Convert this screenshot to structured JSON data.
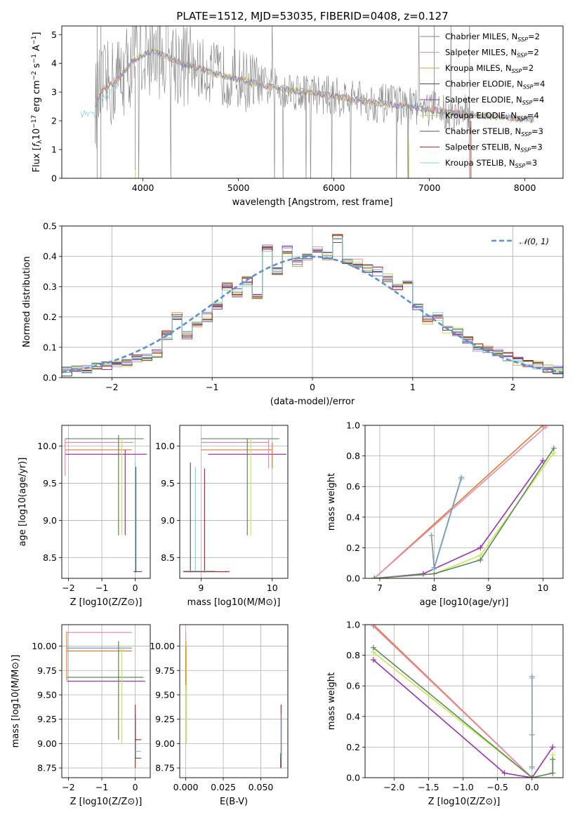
{
  "title": "PLATE=1512, MJD=53035, FIBERID=0408, z=0.127",
  "colors": {
    "chabrier_miles": "#6f7fc7",
    "salpeter_miles": "#e28bb7",
    "kroupa_miles": "#c9a04a",
    "chabrier_elodie": "#4a4a4a",
    "salpeter_elodie": "#8e3aa8",
    "kroupa_elodie": "#c4e84a",
    "chabrier_stelib": "#5a5a5a",
    "salpeter_stelib": "#b32b2b",
    "kroupa_stelib": "#7fd6e0",
    "data_gray": "#808080",
    "orange": "#e07a2a",
    "green": "#5a8a5a",
    "purple": "#9b30b0",
    "yellowgreen": "#c8ea50",
    "pink": "#e88ab8",
    "cyan": "#80d0dc",
    "gauss": "#5b8fd6"
  },
  "chart_data": [
    {
      "id": "spectrum",
      "type": "line",
      "xlabel": "wavelength [Angstrom, rest frame]",
      "ylabel_parts": [
        "Flux [",
        "f",
        "λ",
        "10",
        "−17",
        " erg cm",
        "−2",
        " s",
        "−1",
        " A",
        "−1",
        "]"
      ],
      "xlim": [
        3150,
        8400
      ],
      "ylim": [
        0,
        5.3
      ],
      "xticks": [
        4000,
        5000,
        6000,
        7000,
        8000
      ],
      "yticks": [
        0,
        1,
        2,
        3,
        4,
        5
      ],
      "legend_position": "top-right",
      "legend": [
        {
          "name_prefix": "Chabrier MILES, N",
          "name_sub": "SSP",
          "name_suffix": "=2",
          "color": "#6f7fc7"
        },
        {
          "name_prefix": "Salpeter MILES, N",
          "name_sub": "SSP",
          "name_suffix": "=2",
          "color": "#e28bb7"
        },
        {
          "name_prefix": "Kroupa MILES, N",
          "name_sub": "SSP",
          "name_suffix": "=2",
          "color": "#c9a04a"
        },
        {
          "name_prefix": "Chabrier ELODIE, N",
          "name_sub": "SSP",
          "name_suffix": "=4",
          "color": "#4a4a4a"
        },
        {
          "name_prefix": "Salpeter ELODIE, N",
          "name_sub": "SSP",
          "name_suffix": "=4",
          "color": "#8e3aa8"
        },
        {
          "name_prefix": "Kroupa ELODIE, N",
          "name_sub": "SSP",
          "name_suffix": "=4",
          "color": "#c4e84a"
        },
        {
          "name_prefix": "Chabrier STELIB, N",
          "name_sub": "SSP",
          "name_suffix": "=3",
          "color": "#5a5a5a"
        },
        {
          "name_prefix": "Salpeter STELIB, N",
          "name_sub": "SSP",
          "name_suffix": "=3",
          "color": "#b32b2b"
        },
        {
          "name_prefix": "Kroupa STELIB, N",
          "name_sub": "SSP",
          "name_suffix": "=3",
          "color": "#7fd6e0"
        }
      ],
      "model_envelope": {
        "x": [
          3350,
          3500,
          3550,
          3700,
          3900,
          4000,
          4100,
          4300,
          4500,
          4800,
          5000,
          5300,
          5600,
          6000,
          6500,
          7000,
          7300,
          7500,
          8000,
          8100
        ],
        "y": [
          2.55,
          2.5,
          3.0,
          3.35,
          4.1,
          4.3,
          4.45,
          4.15,
          3.9,
          3.6,
          3.45,
          3.2,
          3.05,
          2.85,
          2.6,
          2.4,
          2.25,
          2.2,
          2.05,
          2.05
        ]
      }
    },
    {
      "id": "residuals",
      "type": "line",
      "xlabel": "(data-model)/error",
      "ylabel": "Normed distribution",
      "xlim": [
        -2.5,
        2.5
      ],
      "ylim": [
        0,
        0.5
      ],
      "xticks": [
        -2,
        -1,
        0,
        1,
        2
      ],
      "xticklabels": [
        "−2",
        "−1",
        "0",
        "1",
        "2"
      ],
      "yticks": [
        0.0,
        0.1,
        0.2,
        0.3,
        0.4,
        0.5
      ],
      "yticklabels": [
        "0.0",
        "0.1",
        "0.2",
        "0.3",
        "0.4",
        "0.5"
      ],
      "legend": [
        {
          "name": "𝒩(0, 1)",
          "color": "#5b8fd6",
          "style": "dashed"
        }
      ],
      "legend_position": "top-right",
      "histogram_bins": {
        "x_left": [
          -2.5,
          -2.4,
          -2.3,
          -2.2,
          -2.1,
          -2.0,
          -1.9,
          -1.8,
          -1.7,
          -1.6,
          -1.5,
          -1.4,
          -1.3,
          -1.2,
          -1.1,
          -1.0,
          -0.9,
          -0.8,
          -0.7,
          -0.6,
          -0.5,
          -0.4,
          -0.3,
          -0.2,
          -0.1,
          0.0,
          0.1,
          0.2,
          0.3,
          0.4,
          0.5,
          0.6,
          0.7,
          0.8,
          0.9,
          1.0,
          1.1,
          1.2,
          1.3,
          1.4,
          1.5,
          1.6,
          1.7,
          1.8,
          1.9,
          2.0,
          2.1,
          2.2,
          2.3,
          2.4
        ],
        "heights": [
          0.02,
          0.025,
          0.03,
          0.035,
          0.04,
          0.045,
          0.05,
          0.06,
          0.07,
          0.08,
          0.14,
          0.2,
          0.14,
          0.17,
          0.2,
          0.24,
          0.3,
          0.28,
          0.32,
          0.27,
          0.43,
          0.35,
          0.42,
          0.38,
          0.4,
          0.42,
          0.4,
          0.46,
          0.39,
          0.38,
          0.36,
          0.35,
          0.33,
          0.3,
          0.31,
          0.23,
          0.19,
          0.2,
          0.16,
          0.15,
          0.12,
          0.1,
          0.09,
          0.085,
          0.07,
          0.055,
          0.045,
          0.04,
          0.03,
          0.025
        ]
      }
    },
    {
      "id": "age_vs_Z",
      "type": "scatter",
      "xlabel": "Z [log10(Z/Z⊙)]",
      "ylabel": "age  [log10(age/yr)]",
      "xlim": [
        -2.2,
        0.45
      ],
      "ylim": [
        8.22,
        10.28
      ],
      "xticks": [
        -2,
        -1,
        0
      ],
      "xticklabels": [
        "−2",
        "−1",
        "0"
      ],
      "yticks": [
        8.5,
        9.0,
        9.5,
        10.0
      ],
      "yticklabels": [
        "8.5",
        "9.0",
        "9.5",
        "10.0"
      ]
    },
    {
      "id": "age_vs_mass",
      "type": "scatter",
      "xlabel": "mass [log10(M/M⊙)]",
      "ylabel": "",
      "xlim": [
        8.7,
        10.22
      ],
      "ylim": [
        8.22,
        10.28
      ],
      "xticks": [
        9,
        10
      ],
      "xticklabels": [
        "9",
        "10"
      ],
      "yticks": [
        8.5,
        9.0,
        9.5,
        10.0
      ],
      "yticklabels": [
        "8.5",
        "9.0",
        "9.5",
        "10.0"
      ]
    },
    {
      "id": "massweight_vs_age",
      "type": "line",
      "xlabel": "age  [log10(age/yr)]",
      "ylabel": "mass weight",
      "xlim": [
        6.73,
        10.37
      ],
      "ylim": [
        0,
        1.0
      ],
      "xticks": [
        7,
        8,
        9,
        10
      ],
      "xticklabels": [
        "7",
        "8",
        "9",
        "10"
      ],
      "yticks": [
        0.0,
        0.2,
        0.4,
        0.6,
        0.8,
        1.0
      ],
      "yticklabels": [
        "0.0",
        "0.2",
        "0.4",
        "0.6",
        "0.8",
        "1.0"
      ],
      "series": [
        {
          "color": "#e07a2a",
          "x": [
            6.9,
            10.0
          ],
          "y": [
            0.0,
            1.0
          ]
        },
        {
          "color": "#e88ab8",
          "x": [
            6.9,
            10.05
          ],
          "y": [
            0.0,
            0.99
          ]
        },
        {
          "color": "#9b30b0",
          "x": [
            6.9,
            7.8,
            8.85,
            10.0
          ],
          "y": [
            0.0,
            0.03,
            0.2,
            0.77
          ]
        },
        {
          "color": "#c8ea50",
          "x": [
            6.9,
            8.0,
            8.85,
            10.2
          ],
          "y": [
            0.0,
            0.03,
            0.15,
            0.82
          ]
        },
        {
          "color": "#5a8a5a",
          "x": [
            6.9,
            8.0,
            8.85,
            10.2
          ],
          "y": [
            0.0,
            0.03,
            0.12,
            0.85
          ]
        },
        {
          "color": "#80d0dc",
          "x": [
            7.95,
            8.0,
            8.5
          ],
          "y": [
            0.28,
            0.06,
            0.65
          ]
        },
        {
          "color": "#8a9aaa",
          "x": [
            7.95,
            8.0,
            8.5
          ],
          "y": [
            0.28,
            0.07,
            0.66
          ]
        }
      ]
    },
    {
      "id": "mass_vs_Z",
      "type": "scatter",
      "xlabel": "Z [log10(Z/Z⊙)]",
      "ylabel": "mass [log10(M/M⊙)]",
      "xlim": [
        -2.2,
        0.45
      ],
      "ylim": [
        8.65,
        10.22
      ],
      "xticks": [
        -2,
        -1,
        0
      ],
      "xticklabels": [
        "−2",
        "−1",
        "0"
      ],
      "yticks": [
        8.75,
        9.0,
        9.25,
        9.5,
        9.75,
        10.0
      ],
      "yticklabels": [
        "8.75",
        "9.00",
        "9.25",
        "9.50",
        "9.75",
        "10.00"
      ]
    },
    {
      "id": "mass_vs_ebv",
      "type": "scatter",
      "xlabel": "E(B-V)",
      "ylabel": "",
      "xlim": [
        -0.004,
        0.068
      ],
      "ylim": [
        8.65,
        10.22
      ],
      "xticks": [
        0.0,
        0.025,
        0.05
      ],
      "xticklabels": [
        "0.000",
        "0.025",
        "0.050"
      ],
      "yticks": [
        8.75,
        9.0,
        9.25,
        9.5,
        9.75,
        10.0
      ],
      "yticklabels": [
        "8.75",
        "9.00",
        "9.25",
        "9.50",
        "9.75",
        "10.00"
      ]
    },
    {
      "id": "massweight_vs_Z",
      "type": "line",
      "xlabel": "Z [log10(Z/Z⊙)]",
      "ylabel": "mass weight",
      "xlim": [
        -2.42,
        0.45
      ],
      "ylim": [
        0,
        1.0
      ],
      "xticks": [
        -2.0,
        -1.5,
        -1.0,
        -0.5,
        0.0
      ],
      "xticklabels": [
        "−2.0",
        "−1.5",
        "−1.0",
        "−0.5",
        "0.0"
      ],
      "yticks": [
        0.0,
        0.2,
        0.4,
        0.6,
        0.8,
        1.0
      ],
      "yticklabels": [
        "0.0",
        "0.2",
        "0.4",
        "0.6",
        "0.8",
        "1.0"
      ],
      "series": [
        {
          "color": "#e07a2a",
          "x": [
            -2.3,
            0.0
          ],
          "y": [
            1.0,
            0.0
          ]
        },
        {
          "color": "#e88ab8",
          "x": [
            -2.3,
            0.0
          ],
          "y": [
            0.99,
            0.0
          ]
        },
        {
          "color": "#9b30b0",
          "x": [
            -2.3,
            -0.4,
            0.0,
            0.3
          ],
          "y": [
            0.77,
            0.03,
            0.0,
            0.2
          ]
        },
        {
          "color": "#c8ea50",
          "x": [
            -2.3,
            0.0,
            0.3,
            0.3
          ],
          "y": [
            0.82,
            0.0,
            0.03,
            0.15
          ]
        },
        {
          "color": "#5a8a5a",
          "x": [
            -2.3,
            0.0,
            0.3,
            0.3
          ],
          "y": [
            0.85,
            0.0,
            0.03,
            0.12
          ]
        },
        {
          "color": "#80d0dc",
          "x": [
            0.0,
            0.0,
            0.0
          ],
          "y": [
            0.65,
            0.06,
            0.28
          ]
        },
        {
          "color": "#8a9aaa",
          "x": [
            0.0,
            0.0,
            0.0
          ],
          "y": [
            0.66,
            0.07,
            0.28
          ]
        }
      ]
    }
  ]
}
